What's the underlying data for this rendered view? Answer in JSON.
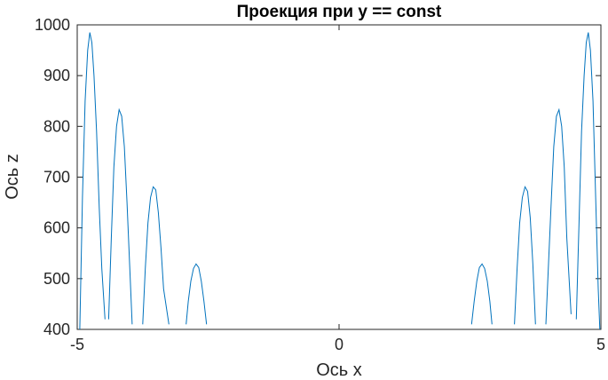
{
  "chart_data": {
    "type": "line",
    "title": "Проекция при y == const",
    "xlabel": "Ось x",
    "ylabel": "Ось z",
    "xlim": [
      -5,
      5
    ],
    "ylim": [
      400,
      1000
    ],
    "xticks": [
      -5,
      0,
      5
    ],
    "yticks": [
      400,
      500,
      600,
      700,
      800,
      900,
      1000
    ],
    "xtick_labels": [
      "-5",
      "0",
      "5"
    ],
    "ytick_labels": [
      "400",
      "500",
      "600",
      "700",
      "800",
      "900",
      "1000"
    ],
    "grid": false,
    "box": true,
    "line_color": "#0072BD",
    "axis_color": "#262626",
    "series": [
      {
        "segments": [
          {
            "x": [
              -4.95,
              -4.9,
              -4.85,
              -4.8,
              -4.76,
              -4.72,
              -4.68,
              -4.63,
              -4.58,
              -4.53,
              -4.47
            ],
            "y": [
              400,
              660,
              850,
              950,
              985,
              965,
              900,
              790,
              640,
              520,
              420
            ]
          },
          {
            "x": [
              -4.4,
              -4.35,
              -4.3,
              -4.25,
              -4.2,
              -4.15,
              -4.1,
              -4.05,
              -4.0,
              -3.95
            ],
            "y": [
              420,
              580,
              720,
              800,
              833,
              820,
              760,
              650,
              530,
              410
            ]
          },
          {
            "x": [
              -3.75,
              -3.7,
              -3.65,
              -3.6,
              -3.55,
              -3.5,
              -3.45,
              -3.4,
              -3.35,
              -3.25
            ],
            "y": [
              410,
              520,
              610,
              660,
              681,
              675,
              630,
              560,
              480,
              410
            ]
          },
          {
            "x": [
              -2.92,
              -2.88,
              -2.83,
              -2.78,
              -2.73,
              -2.68,
              -2.63,
              -2.58,
              -2.53
            ],
            "y": [
              410,
              455,
              495,
              520,
              529,
              522,
              495,
              455,
              410
            ]
          },
          {
            "x": [
              2.53,
              2.58,
              2.63,
              2.68,
              2.73,
              2.78,
              2.83,
              2.88,
              2.92
            ],
            "y": [
              410,
              455,
              495,
              522,
              529,
              520,
              495,
              455,
              410
            ]
          },
          {
            "x": [
              3.35,
              3.4,
              3.45,
              3.5,
              3.55,
              3.6,
              3.65,
              3.7,
              3.75
            ],
            "y": [
              410,
              520,
              610,
              660,
              681,
              672,
              620,
              530,
              410
            ]
          },
          {
            "x": [
              3.95,
              4.0,
              4.05,
              4.1,
              4.15,
              4.2,
              4.25,
              4.3,
              4.35,
              4.43
            ],
            "y": [
              410,
              530,
              650,
              760,
              820,
              833,
              800,
              720,
              580,
              430
            ]
          },
          {
            "x": [
              4.53,
              4.58,
              4.63,
              4.68,
              4.72,
              4.76,
              4.8,
              4.85,
              4.9,
              4.95,
              4.98
            ],
            "y": [
              420,
              600,
              790,
              900,
              965,
              985,
              950,
              850,
              660,
              480,
              400
            ]
          }
        ]
      }
    ]
  }
}
